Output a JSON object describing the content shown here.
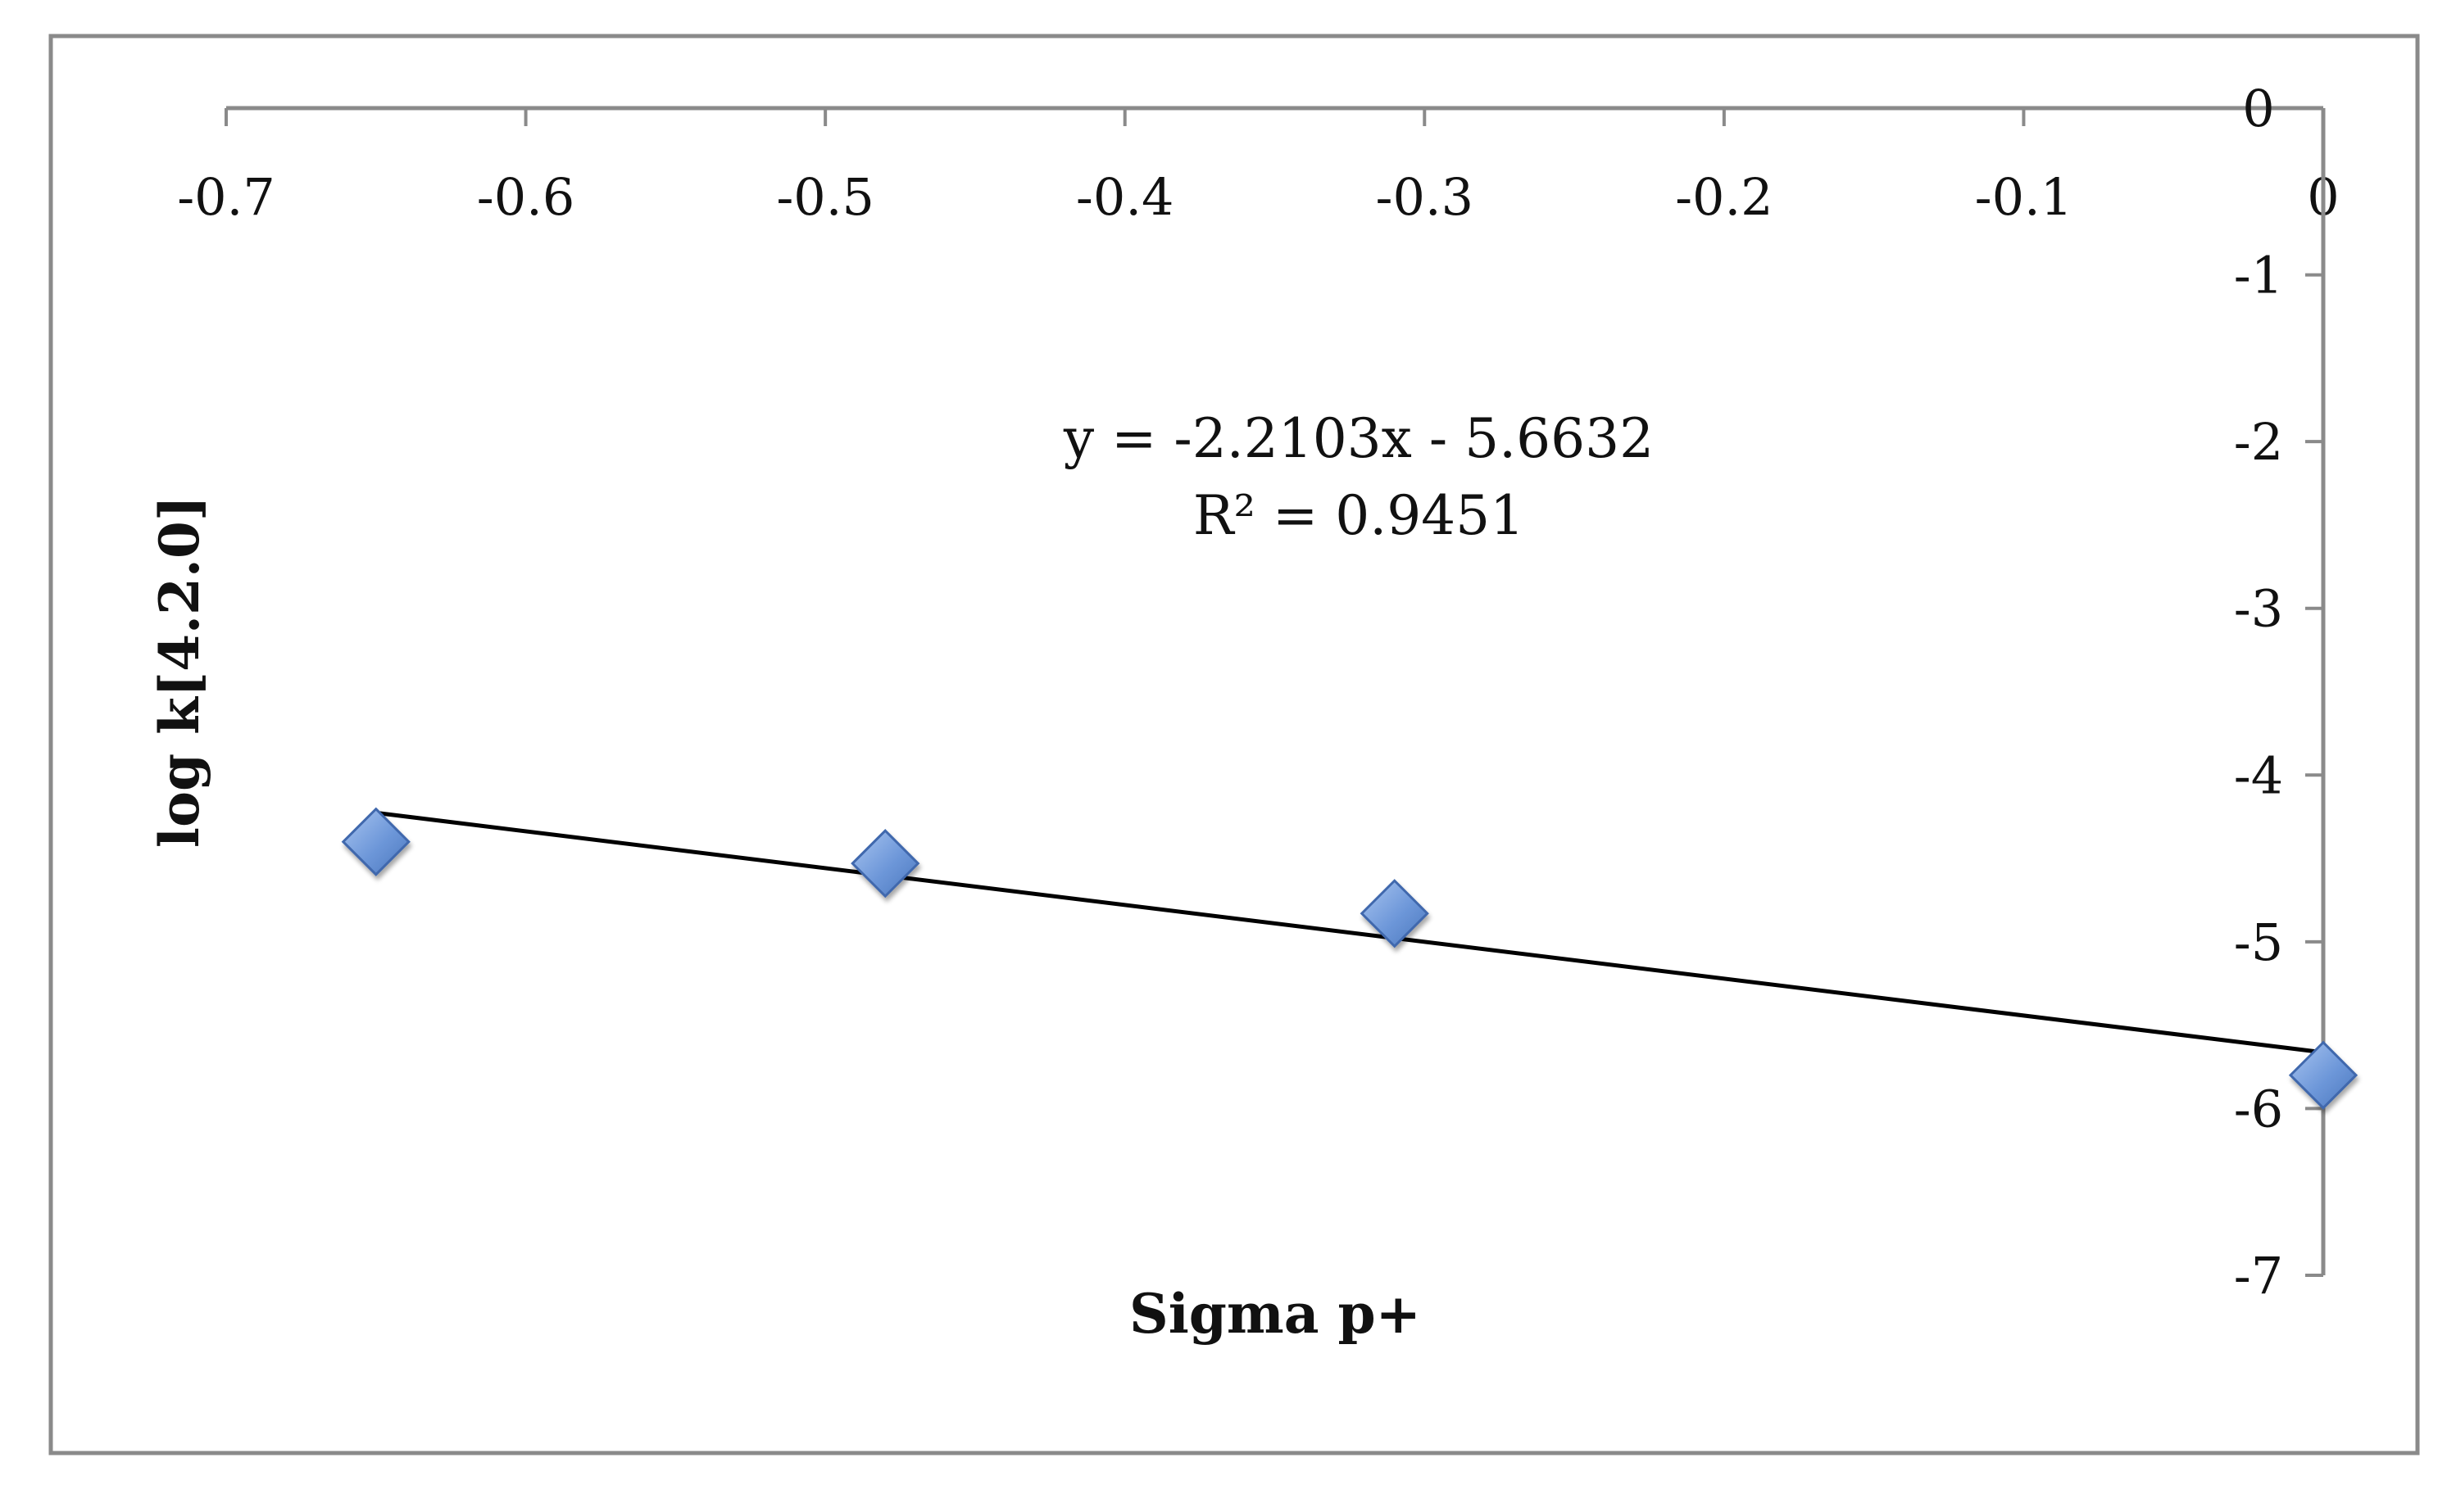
{
  "chart_data": {
    "type": "scatter",
    "xlabel": "Sigma p+",
    "ylabel": "log k[4.2.0]",
    "xlim": [
      -0.7,
      0
    ],
    "ylim": [
      -7,
      0
    ],
    "x_ticks": [
      -0.7,
      -0.6,
      -0.5,
      -0.4,
      -0.3,
      -0.2,
      -0.1,
      0
    ],
    "y_ticks": [
      0,
      -1,
      -2,
      -3,
      -4,
      -5,
      -6,
      -7
    ],
    "x_axis_position": "top",
    "y_axis_position": "right",
    "grid": false,
    "series": [
      {
        "color": "#6d97d9",
        "marker": "diamond",
        "points": [
          {
            "x": -0.65,
            "y": -4.4
          },
          {
            "x": -0.48,
            "y": -4.53
          },
          {
            "x": -0.31,
            "y": -4.83
          },
          {
            "x": 0.0,
            "y": -5.8
          }
        ]
      }
    ],
    "trendline": {
      "type": "linear",
      "slope": -2.2103,
      "intercept": -5.6632,
      "x_range": [
        -0.65,
        0
      ],
      "color": "#000000",
      "equation_label": "y = -2.2103x - 5.6632",
      "r2_label": "R² = 0.9451"
    }
  }
}
